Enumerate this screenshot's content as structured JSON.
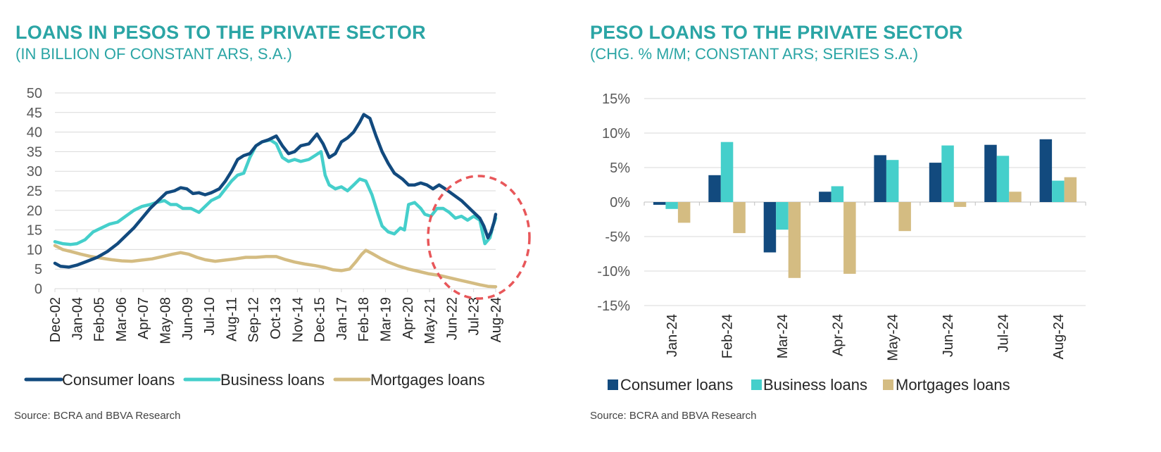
{
  "colors": {
    "title": "#2BA5A5",
    "consumer": "#124A7E",
    "business": "#45CFCB",
    "mortgages": "#D4BC82",
    "circle": "#E8575A",
    "grid": "#D9D9D9",
    "axis_text": "#595959"
  },
  "left": {
    "title": "LOANS IN PESOS TO THE PRIVATE SECTOR",
    "subtitle": "(IN BILLION OF CONSTANT ARS, S.A.)",
    "source": "Source: BCRA and BBVA Research",
    "chart_data": {
      "type": "line",
      "title": "LOANS IN PESOS TO THE PRIVATE SECTOR",
      "subtitle": "(IN BILLION OF CONSTANT ARS, S.A.)",
      "xlabel": "",
      "ylabel": "",
      "ylim": [
        0,
        50
      ],
      "yticks": [
        "0",
        "5",
        "10",
        "15",
        "20",
        "25",
        "30",
        "35",
        "40",
        "45",
        "50"
      ],
      "xticks": [
        "Dec-02",
        "Jan-04",
        "Feb-05",
        "Mar-06",
        "Apr-07",
        "May-08",
        "Jun-09",
        "Jul-10",
        "Aug-11",
        "Sep-12",
        "Oct-13",
        "Nov-14",
        "Dec-15",
        "Jan-17",
        "Feb-18",
        "Mar-19",
        "Apr-20",
        "May-21",
        "Jun-22",
        "Jul-23",
        "Aug-24"
      ],
      "x_time_start": 2002.92,
      "x_time_end": 2024.58,
      "series": [
        {
          "name": "Consumer loans",
          "points": [
            [
              2002.92,
              6.5
            ],
            [
              2003.2,
              5.7
            ],
            [
              2003.6,
              5.5
            ],
            [
              2004.0,
              6.0
            ],
            [
              2004.5,
              7.0
            ],
            [
              2005.0,
              8.0
            ],
            [
              2005.5,
              9.5
            ],
            [
              2006.0,
              11.5
            ],
            [
              2006.4,
              13.5
            ],
            [
              2006.8,
              15.5
            ],
            [
              2007.2,
              18.0
            ],
            [
              2007.6,
              20.5
            ],
            [
              2008.0,
              22.5
            ],
            [
              2008.4,
              24.5
            ],
            [
              2008.8,
              25.0
            ],
            [
              2009.1,
              25.8
            ],
            [
              2009.4,
              25.5
            ],
            [
              2009.7,
              24.3
            ],
            [
              2010.0,
              24.5
            ],
            [
              2010.3,
              24.0
            ],
            [
              2010.6,
              24.5
            ],
            [
              2011.0,
              25.5
            ],
            [
              2011.3,
              27.5
            ],
            [
              2011.6,
              30.0
            ],
            [
              2011.9,
              33.0
            ],
            [
              2012.2,
              34.0
            ],
            [
              2012.5,
              34.5
            ],
            [
              2012.8,
              36.5
            ],
            [
              2013.1,
              37.5
            ],
            [
              2013.4,
              38.0
            ],
            [
              2013.8,
              39.0
            ],
            [
              2014.1,
              36.5
            ],
            [
              2014.4,
              34.5
            ],
            [
              2014.7,
              35.0
            ],
            [
              2015.0,
              36.5
            ],
            [
              2015.4,
              37.0
            ],
            [
              2015.8,
              39.5
            ],
            [
              2016.1,
              37.0
            ],
            [
              2016.4,
              33.5
            ],
            [
              2016.7,
              34.5
            ],
            [
              2017.0,
              37.5
            ],
            [
              2017.3,
              38.5
            ],
            [
              2017.6,
              40.0
            ],
            [
              2017.9,
              42.5
            ],
            [
              2018.1,
              44.5
            ],
            [
              2018.4,
              43.5
            ],
            [
              2018.7,
              39.0
            ],
            [
              2019.0,
              35.0
            ],
            [
              2019.3,
              32.0
            ],
            [
              2019.6,
              29.5
            ],
            [
              2020.0,
              28.0
            ],
            [
              2020.3,
              26.5
            ],
            [
              2020.6,
              26.5
            ],
            [
              2020.9,
              27.0
            ],
            [
              2021.2,
              26.5
            ],
            [
              2021.5,
              25.5
            ],
            [
              2021.8,
              26.5
            ],
            [
              2022.1,
              25.5
            ],
            [
              2022.5,
              24.0
            ],
            [
              2022.9,
              22.5
            ],
            [
              2023.2,
              21.0
            ],
            [
              2023.5,
              19.5
            ],
            [
              2023.8,
              18.0
            ],
            [
              2024.0,
              16.0
            ],
            [
              2024.2,
              13.0
            ],
            [
              2024.35,
              14.5
            ],
            [
              2024.5,
              17.0
            ],
            [
              2024.58,
              19.0
            ]
          ]
        },
        {
          "name": "Business loans",
          "points": [
            [
              2002.92,
              12.0
            ],
            [
              2003.3,
              11.5
            ],
            [
              2003.7,
              11.3
            ],
            [
              2004.0,
              11.5
            ],
            [
              2004.4,
              12.5
            ],
            [
              2004.8,
              14.5
            ],
            [
              2005.2,
              15.5
            ],
            [
              2005.6,
              16.5
            ],
            [
              2006.0,
              17.0
            ],
            [
              2006.4,
              18.5
            ],
            [
              2006.8,
              20.0
            ],
            [
              2007.2,
              21.0
            ],
            [
              2007.6,
              21.5
            ],
            [
              2007.9,
              22.0
            ],
            [
              2008.3,
              22.5
            ],
            [
              2008.6,
              21.5
            ],
            [
              2008.9,
              21.5
            ],
            [
              2009.2,
              20.5
            ],
            [
              2009.6,
              20.5
            ],
            [
              2010.0,
              19.5
            ],
            [
              2010.3,
              21.0
            ],
            [
              2010.6,
              22.5
            ],
            [
              2011.0,
              23.5
            ],
            [
              2011.3,
              25.5
            ],
            [
              2011.6,
              27.5
            ],
            [
              2011.9,
              29.0
            ],
            [
              2012.2,
              29.5
            ],
            [
              2012.5,
              33.5
            ],
            [
              2012.8,
              36.5
            ],
            [
              2013.1,
              37.5
            ],
            [
              2013.5,
              38.0
            ],
            [
              2013.8,
              37.0
            ],
            [
              2014.1,
              33.5
            ],
            [
              2014.4,
              32.5
            ],
            [
              2014.7,
              33.0
            ],
            [
              2015.0,
              32.5
            ],
            [
              2015.4,
              33.0
            ],
            [
              2015.7,
              34.0
            ],
            [
              2016.0,
              35.0
            ],
            [
              2016.2,
              29.0
            ],
            [
              2016.4,
              26.5
            ],
            [
              2016.7,
              25.5
            ],
            [
              2017.0,
              26.0
            ],
            [
              2017.3,
              25.0
            ],
            [
              2017.6,
              26.5
            ],
            [
              2017.9,
              28.0
            ],
            [
              2018.2,
              27.5
            ],
            [
              2018.5,
              24.0
            ],
            [
              2018.8,
              19.0
            ],
            [
              2019.0,
              16.0
            ],
            [
              2019.3,
              14.5
            ],
            [
              2019.6,
              14.0
            ],
            [
              2019.9,
              15.5
            ],
            [
              2020.1,
              15.0
            ],
            [
              2020.3,
              21.5
            ],
            [
              2020.6,
              22.0
            ],
            [
              2020.9,
              20.5
            ],
            [
              2021.1,
              19.0
            ],
            [
              2021.4,
              18.5
            ],
            [
              2021.7,
              20.5
            ],
            [
              2022.0,
              20.5
            ],
            [
              2022.3,
              19.5
            ],
            [
              2022.6,
              18.0
            ],
            [
              2022.9,
              18.5
            ],
            [
              2023.2,
              17.5
            ],
            [
              2023.5,
              18.5
            ],
            [
              2023.8,
              17.5
            ],
            [
              2024.05,
              11.5
            ],
            [
              2024.3,
              13.0
            ],
            [
              2024.45,
              16.0
            ],
            [
              2024.58,
              18.0
            ]
          ]
        },
        {
          "name": "Mortgages loans",
          "points": [
            [
              2002.92,
              11.0
            ],
            [
              2003.3,
              10.0
            ],
            [
              2003.7,
              9.5
            ],
            [
              2004.2,
              8.8
            ],
            [
              2004.7,
              8.2
            ],
            [
              2005.2,
              7.8
            ],
            [
              2005.7,
              7.4
            ],
            [
              2006.2,
              7.1
            ],
            [
              2006.7,
              7.0
            ],
            [
              2007.2,
              7.3
            ],
            [
              2007.7,
              7.6
            ],
            [
              2008.2,
              8.2
            ],
            [
              2008.7,
              8.8
            ],
            [
              2009.1,
              9.2
            ],
            [
              2009.5,
              8.8
            ],
            [
              2009.9,
              8.0
            ],
            [
              2010.3,
              7.4
            ],
            [
              2010.8,
              7.0
            ],
            [
              2011.3,
              7.3
            ],
            [
              2011.8,
              7.6
            ],
            [
              2012.3,
              8.0
            ],
            [
              2012.8,
              8.0
            ],
            [
              2013.3,
              8.2
            ],
            [
              2013.8,
              8.2
            ],
            [
              2014.2,
              7.5
            ],
            [
              2014.7,
              6.8
            ],
            [
              2015.2,
              6.3
            ],
            [
              2015.7,
              5.9
            ],
            [
              2016.2,
              5.4
            ],
            [
              2016.6,
              4.8
            ],
            [
              2017.0,
              4.6
            ],
            [
              2017.4,
              5.0
            ],
            [
              2017.7,
              6.8
            ],
            [
              2018.0,
              8.8
            ],
            [
              2018.2,
              9.8
            ],
            [
              2018.5,
              9.0
            ],
            [
              2018.9,
              7.8
            ],
            [
              2019.3,
              6.8
            ],
            [
              2019.8,
              5.8
            ],
            [
              2020.3,
              5.0
            ],
            [
              2020.8,
              4.4
            ],
            [
              2021.3,
              3.8
            ],
            [
              2021.8,
              3.4
            ],
            [
              2022.3,
              2.8
            ],
            [
              2022.8,
              2.2
            ],
            [
              2023.3,
              1.6
            ],
            [
              2023.8,
              1.0
            ],
            [
              2024.2,
              0.6
            ],
            [
              2024.58,
              0.5
            ]
          ]
        }
      ],
      "legend": [
        "Consumer loans",
        "Business loans",
        "Mortgages loans"
      ],
      "legend_position": "bottom",
      "grid": true,
      "annotation": "dashed red circle around Jun-22 to Aug-24"
    }
  },
  "right": {
    "title": "PESO LOANS TO THE PRIVATE SECTOR",
    "subtitle": "(CHG. % M/M; CONSTANT ARS; SERIES S.A.)",
    "source": "Source: BCRA and BBVA Research",
    "chart_data": {
      "type": "bar",
      "title": "PESO LOANS TO THE PRIVATE SECTOR",
      "subtitle": "(CHG. % M/M; CONSTANT ARS; SERIES S.A.)",
      "xlabel": "",
      "ylabel": "",
      "ylim": [
        -15,
        15
      ],
      "yticks": [
        -15,
        -10,
        -5,
        0,
        5,
        10,
        15
      ],
      "ytick_labels": [
        "-15%",
        "-10%",
        "-5%",
        "0%",
        "5%",
        "10%",
        "15%"
      ],
      "categories": [
        "Jan-24",
        "Feb-24",
        "Mar-24",
        "Apr-24",
        "May-24",
        "Jun-24",
        "Jul-24",
        "Aug-24"
      ],
      "series": [
        {
          "name": "Consumer loans",
          "values": [
            -0.4,
            3.9,
            -7.3,
            1.5,
            6.8,
            5.7,
            8.3,
            9.1
          ]
        },
        {
          "name": "Business loans",
          "values": [
            -1.0,
            8.7,
            -4.0,
            2.3,
            6.1,
            8.2,
            6.7,
            3.1
          ]
        },
        {
          "name": "Mortgages loans",
          "values": [
            -3.0,
            -4.5,
            -11.0,
            -10.4,
            -4.2,
            -0.7,
            1.5,
            3.6
          ]
        }
      ],
      "legend": [
        "Consumer loans",
        "Business loans",
        "Mortgages loans"
      ],
      "legend_position": "bottom",
      "grid": true
    }
  }
}
